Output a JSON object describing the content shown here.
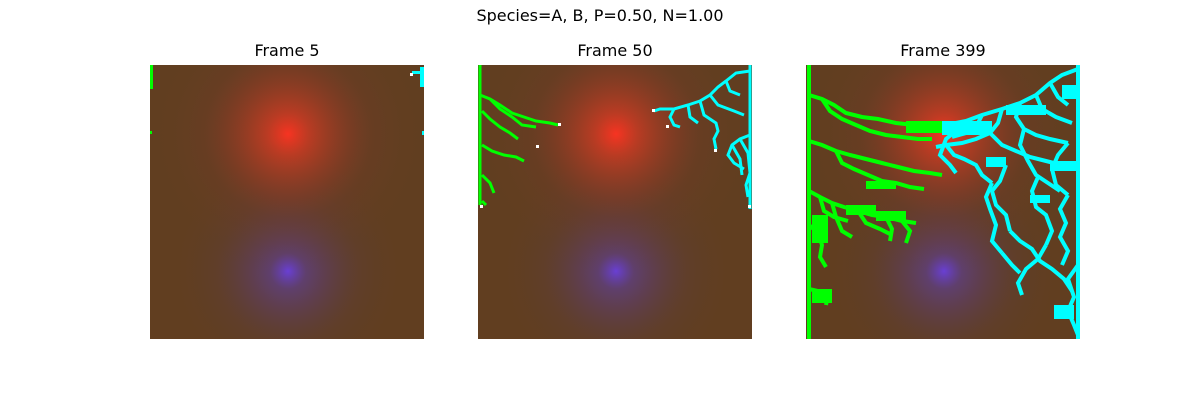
{
  "figure": {
    "suptitle": "Species=A, B, P=0.50, N=1.00"
  },
  "colors": {
    "background": "#ffffff",
    "soil": "#613e20",
    "source_red": "#ff3322",
    "source_blue": "#6a3fe0",
    "species_a": "#00ff00",
    "species_b": "#00ffff",
    "tip": "#ffffff"
  },
  "panels": [
    {
      "title": "Frame 5"
    },
    {
      "title": "Frame 50"
    },
    {
      "title": "Frame 399"
    }
  ]
}
